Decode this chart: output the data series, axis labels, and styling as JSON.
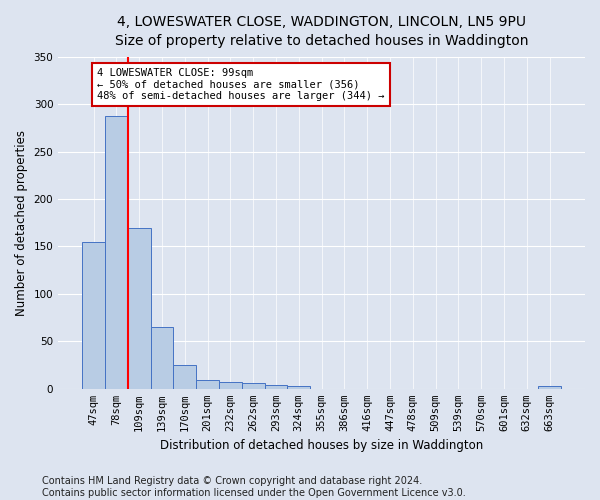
{
  "title_line1": "4, LOWESWATER CLOSE, WADDINGTON, LINCOLN, LN5 9PU",
  "title_line2": "Size of property relative to detached houses in Waddington",
  "xlabel": "Distribution of detached houses by size in Waddington",
  "ylabel": "Number of detached properties",
  "bar_labels": [
    "47sqm",
    "78sqm",
    "109sqm",
    "139sqm",
    "170sqm",
    "201sqm",
    "232sqm",
    "262sqm",
    "293sqm",
    "324sqm",
    "355sqm",
    "386sqm",
    "416sqm",
    "447sqm",
    "478sqm",
    "509sqm",
    "539sqm",
    "570sqm",
    "601sqm",
    "632sqm",
    "663sqm"
  ],
  "bar_values": [
    155,
    287,
    169,
    65,
    25,
    9,
    7,
    6,
    4,
    3,
    0,
    0,
    0,
    0,
    0,
    0,
    0,
    0,
    0,
    0,
    3
  ],
  "bar_color": "#b8cce4",
  "bar_edge_color": "#4472c4",
  "annotation_text": "4 LOWESWATER CLOSE: 99sqm\n← 50% of detached houses are smaller (356)\n48% of semi-detached houses are larger (344) →",
  "annotation_box_color": "#ffffff",
  "annotation_box_edge_color": "#cc0000",
  "ylim": [
    0,
    350
  ],
  "yticks": [
    0,
    50,
    100,
    150,
    200,
    250,
    300,
    350
  ],
  "footnote_line1": "Contains HM Land Registry data © Crown copyright and database right 2024.",
  "footnote_line2": "Contains public sector information licensed under the Open Government Licence v3.0.",
  "bg_color": "#dde4f0",
  "grid_color": "#ffffff",
  "title_fontsize": 10,
  "axis_label_fontsize": 8.5,
  "tick_fontsize": 7.5,
  "annotation_fontsize": 7.5,
  "footnote_fontsize": 7
}
